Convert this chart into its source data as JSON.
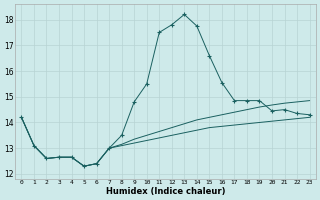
{
  "xlabel": "Humidex (Indice chaleur)",
  "background_color": "#ceeaea",
  "grid_color": "#b8d4d4",
  "line_color": "#1a6060",
  "xlim": [
    -0.5,
    23.5
  ],
  "ylim": [
    11.8,
    18.6
  ],
  "yticks": [
    12,
    13,
    14,
    15,
    16,
    17,
    18
  ],
  "xticks": [
    0,
    1,
    2,
    3,
    4,
    5,
    6,
    7,
    8,
    9,
    10,
    11,
    12,
    13,
    14,
    15,
    16,
    17,
    18,
    19,
    20,
    21,
    22,
    23
  ],
  "series_main": {
    "x": [
      0,
      1,
      2,
      3,
      4,
      5,
      6,
      7,
      8,
      9,
      10,
      11,
      12,
      13,
      14,
      15,
      16,
      17,
      18,
      19,
      20,
      21,
      22,
      23
    ],
    "y": [
      14.2,
      13.1,
      12.6,
      12.65,
      12.65,
      12.3,
      12.4,
      13.0,
      13.5,
      14.8,
      15.5,
      17.5,
      17.8,
      18.2,
      17.75,
      16.6,
      15.55,
      14.85,
      14.85,
      14.85,
      14.45,
      14.5,
      14.35,
      14.3
    ]
  },
  "series_line1": {
    "x": [
      0,
      1,
      2,
      3,
      4,
      5,
      6,
      7,
      8,
      9,
      10,
      11,
      12,
      13,
      14,
      15,
      16,
      17,
      18,
      19,
      20,
      21,
      22,
      23
    ],
    "y": [
      14.2,
      13.1,
      12.6,
      12.65,
      12.65,
      12.3,
      12.4,
      13.0,
      13.1,
      13.2,
      13.3,
      13.4,
      13.5,
      13.6,
      13.7,
      13.8,
      13.85,
      13.9,
      13.95,
      14.0,
      14.05,
      14.1,
      14.15,
      14.2
    ]
  },
  "series_line2": {
    "x": [
      0,
      1,
      2,
      3,
      4,
      5,
      6,
      7,
      8,
      9,
      10,
      11,
      12,
      13,
      14,
      15,
      16,
      17,
      18,
      19,
      20,
      21,
      22,
      23
    ],
    "y": [
      14.2,
      13.1,
      12.6,
      12.65,
      12.65,
      12.3,
      12.4,
      13.0,
      13.15,
      13.35,
      13.5,
      13.65,
      13.8,
      13.95,
      14.1,
      14.2,
      14.3,
      14.4,
      14.5,
      14.6,
      14.68,
      14.75,
      14.8,
      14.85
    ]
  }
}
